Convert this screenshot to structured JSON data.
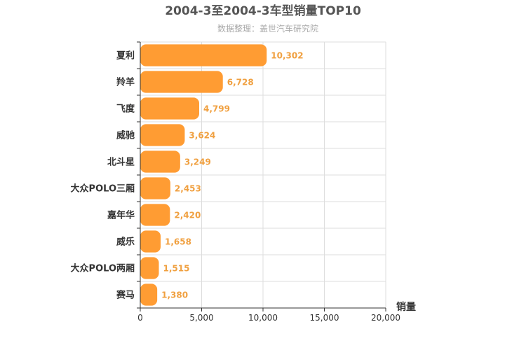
{
  "chart_data": {
    "type": "bar",
    "orientation": "horizontal",
    "title": "2004-3至2004-3车型销量TOP10",
    "subtitle": "数据整理：盖世汽车研究院",
    "categories": [
      "夏利",
      "羚羊",
      "飞度",
      "威驰",
      "北斗星",
      "大众POLO三厢",
      "嘉年华",
      "威乐",
      "大众POLO两厢",
      "赛马"
    ],
    "values": [
      10302,
      6728,
      4799,
      3624,
      3249,
      2453,
      2420,
      1658,
      1515,
      1380
    ],
    "value_labels": [
      "10,302",
      "6,728",
      "4,799",
      "3,624",
      "3,249",
      "2,453",
      "2,420",
      "1,658",
      "1,515",
      "1,380"
    ],
    "xlabel": "销量",
    "ylabel": "",
    "xlim": [
      0,
      20000
    ],
    "xticks": [
      0,
      5000,
      10000,
      15000,
      20000
    ],
    "xtick_labels": [
      "0",
      "5,000",
      "10,000",
      "15,000",
      "20,000"
    ],
    "grid": true,
    "legend": "none",
    "bar_color": "#ff9c33",
    "value_label_color": "#f0a040"
  }
}
